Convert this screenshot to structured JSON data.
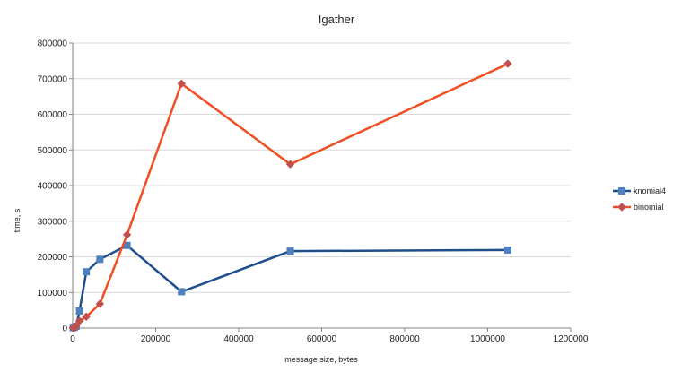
{
  "chart_data": {
    "type": "line",
    "title": "Igather",
    "xlabel": "message size, bytes",
    "ylabel": "time, s",
    "xlim": [
      0,
      1200000
    ],
    "ylim": [
      0,
      800000
    ],
    "x_ticks": [
      0,
      200000,
      400000,
      600000,
      800000,
      1000000,
      1200000
    ],
    "y_ticks": [
      0,
      100000,
      200000,
      300000,
      400000,
      500000,
      600000,
      700000,
      800000
    ],
    "grid": {
      "horizontal": true,
      "vertical": false
    },
    "legend_position": "right",
    "series": [
      {
        "name": "knomial4",
        "color": "#1f4e8c",
        "marker": "square",
        "marker_color": "#4f81bd",
        "points": [
          {
            "x": 1024,
            "y": 1000
          },
          {
            "x": 2048,
            "y": 1500
          },
          {
            "x": 4096,
            "y": 2500
          },
          {
            "x": 8192,
            "y": 5000
          },
          {
            "x": 16384,
            "y": 48000
          },
          {
            "x": 32768,
            "y": 158000
          },
          {
            "x": 65536,
            "y": 193000
          },
          {
            "x": 131072,
            "y": 232000
          },
          {
            "x": 262144,
            "y": 102000
          },
          {
            "x": 524288,
            "y": 216000
          },
          {
            "x": 1048576,
            "y": 219000
          }
        ]
      },
      {
        "name": "binomial",
        "color": "#f04e23",
        "marker": "diamond",
        "marker_color": "#c0504d",
        "points": [
          {
            "x": 1024,
            "y": 1000
          },
          {
            "x": 2048,
            "y": 1500
          },
          {
            "x": 4096,
            "y": 2500
          },
          {
            "x": 8192,
            "y": 5000
          },
          {
            "x": 16384,
            "y": 20000
          },
          {
            "x": 32768,
            "y": 32000
          },
          {
            "x": 65536,
            "y": 68000
          },
          {
            "x": 131072,
            "y": 262000
          },
          {
            "x": 262144,
            "y": 686000
          },
          {
            "x": 524288,
            "y": 460000
          },
          {
            "x": 1048576,
            "y": 742000
          }
        ]
      }
    ]
  }
}
